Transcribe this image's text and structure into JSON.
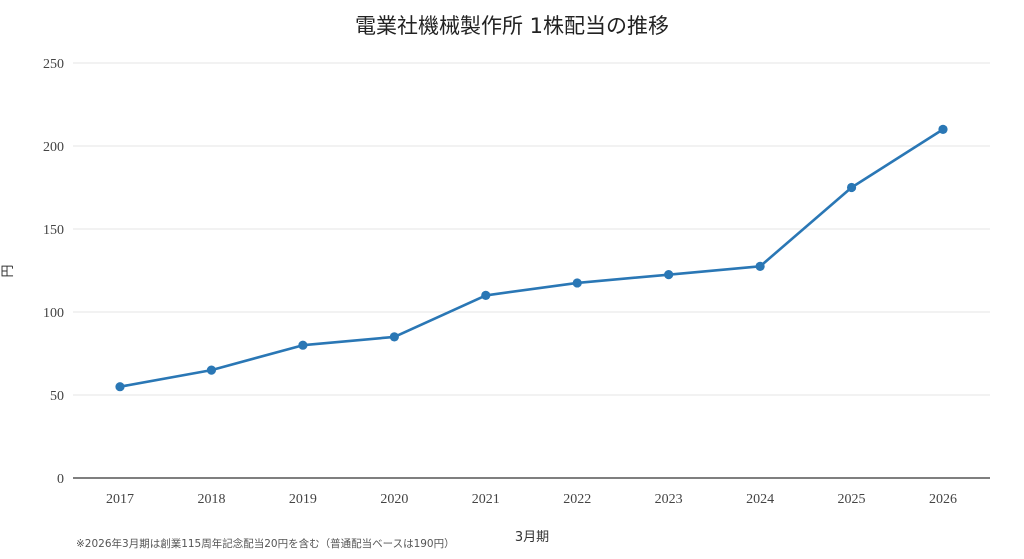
{
  "chart_data": {
    "type": "line",
    "title": "電業社機械製作所 1株配当の推移",
    "xlabel": "3月期",
    "ylabel": "円",
    "ylim": [
      0,
      250
    ],
    "yticks": [
      0,
      50,
      100,
      150,
      200,
      250
    ],
    "grid": true,
    "x": [
      "2017",
      "2018",
      "2019",
      "2020",
      "2021",
      "2022",
      "2023",
      "2024",
      "2025",
      "2026"
    ],
    "series": [
      {
        "values": [
          55,
          65,
          80,
          85,
          110,
          117.5,
          122.5,
          127.5,
          175,
          210
        ]
      }
    ],
    "footnote": "※2026年3月期は創業115周年記念配当20円を含む（普通配当ベースは190円）",
    "colors": {
      "line": "#2a77b5",
      "grid": "#e6e6e6",
      "axis": "#333333"
    }
  }
}
